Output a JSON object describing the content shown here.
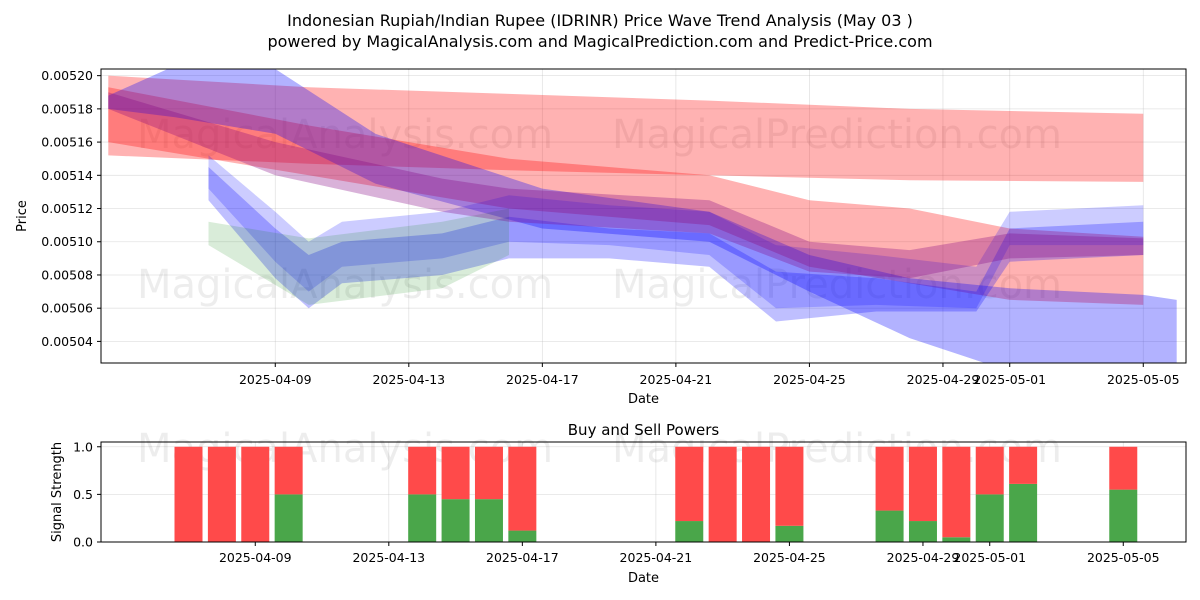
{
  "title_line1": "Indonesian Rupiah/Indian Rupee (IDRINR) Price Wave Trend Analysis (May 03 )",
  "title_line2": "powered by MagicalAnalysis.com and MagicalPrediction.com and Predict-Price.com",
  "watermarks": [
    "MagicalAnalysis.com",
    "MagicalPrediction.com"
  ],
  "colors": {
    "red": "#ff0000",
    "blue": "#0000ff",
    "green": "#008000",
    "purple": "#800080",
    "buy": "#4aa64a",
    "sell": "#ff4a4a"
  },
  "chart_data": [
    {
      "type": "area",
      "title": "",
      "xlabel": "Date",
      "ylabel": "Price",
      "x_range": [
        "2025-04-04",
        "2025-05-06"
      ],
      "ylim": [
        0.005027,
        0.005204
      ],
      "x_ticks": [
        "2025-04-09",
        "2025-04-13",
        "2025-04-17",
        "2025-04-21",
        "2025-04-25",
        "2025-04-29",
        "2025-05-01",
        "2025-05-05"
      ],
      "y_ticks": [
        "0.00504",
        "0.00506",
        "0.00508",
        "0.00510",
        "0.00512",
        "0.00514",
        "0.00516",
        "0.00518",
        "0.00520"
      ],
      "grid": true,
      "series": [
        {
          "color": "red",
          "opacity": 0.3,
          "x": [
            "2025-04-04",
            "2025-04-10",
            "2025-04-16",
            "2025-04-22",
            "2025-04-28",
            "2025-05-05"
          ],
          "upper": [
            0.0052,
            0.005193,
            0.005189,
            0.005185,
            0.00518,
            0.005177
          ],
          "lower": [
            0.005152,
            0.005147,
            0.005143,
            0.00514,
            0.005137,
            0.005136
          ]
        },
        {
          "color": "red",
          "opacity": 0.3,
          "x": [
            "2025-04-04",
            "2025-04-10",
            "2025-04-16",
            "2025-04-22",
            "2025-04-25",
            "2025-04-28",
            "2025-05-01",
            "2025-05-05"
          ],
          "upper": [
            0.005193,
            0.00517,
            0.00515,
            0.00514,
            0.005125,
            0.00512,
            0.005108,
            0.005103
          ],
          "lower": [
            0.00516,
            0.00514,
            0.00512,
            0.00511,
            0.005085,
            0.005075,
            0.005065,
            0.005062
          ]
        },
        {
          "color": "blue",
          "opacity": 0.3,
          "x": [
            "2025-04-04",
            "2025-04-06",
            "2025-04-09",
            "2025-04-12",
            "2025-04-17",
            "2025-04-22",
            "2025-04-25",
            "2025-04-28",
            "2025-05-01",
            "2025-05-05",
            "2025-05-06"
          ],
          "upper": [
            0.005188,
            0.005206,
            0.005204,
            0.005165,
            0.005132,
            0.005118,
            0.005092,
            0.005078,
            0.005072,
            0.005068,
            0.005065
          ],
          "lower": [
            0.00518,
            0.005175,
            0.005165,
            0.005135,
            0.005108,
            0.0051,
            0.00507,
            0.005042,
            0.005022,
            0.00502,
            0.005015
          ]
        },
        {
          "color": "blue",
          "opacity": 0.2,
          "x": [
            "2025-04-07",
            "2025-04-09",
            "2025-04-10",
            "2025-04-11",
            "2025-04-14",
            "2025-04-16",
            "2025-04-19",
            "2025-04-22",
            "2025-04-24",
            "2025-04-27",
            "2025-04-30",
            "2025-05-01",
            "2025-05-05"
          ],
          "upper": [
            0.005152,
            0.005118,
            0.0051,
            0.005112,
            0.005118,
            0.005128,
            0.005122,
            0.005118,
            0.005098,
            0.005092,
            0.005085,
            0.005118,
            0.005122
          ],
          "lower": [
            0.005132,
            0.005088,
            0.00507,
            0.005085,
            0.00509,
            0.0051,
            0.005098,
            0.005092,
            0.00506,
            0.005062,
            0.00506,
            0.005098,
            0.005098
          ]
        },
        {
          "color": "blue",
          "opacity": 0.25,
          "x": [
            "2025-04-07",
            "2025-04-09",
            "2025-04-10",
            "2025-04-11",
            "2025-04-14",
            "2025-04-16",
            "2025-04-19",
            "2025-04-22",
            "2025-04-24",
            "2025-04-27",
            "2025-04-30",
            "2025-05-01",
            "2025-05-05"
          ],
          "upper": [
            0.005145,
            0.005108,
            0.005092,
            0.0051,
            0.005105,
            0.005115,
            0.005108,
            0.005105,
            0.005082,
            0.005078,
            0.00507,
            0.005108,
            0.005112
          ],
          "lower": [
            0.005125,
            0.005078,
            0.00506,
            0.005075,
            0.00508,
            0.00509,
            0.00509,
            0.005085,
            0.005052,
            0.005058,
            0.005058,
            0.005088,
            0.005092
          ]
        },
        {
          "color": "green",
          "opacity": 0.15,
          "x": [
            "2025-04-07",
            "2025-04-10",
            "2025-04-14",
            "2025-04-16"
          ],
          "upper": [
            0.005112,
            0.005102,
            0.005112,
            0.00512
          ],
          "lower": [
            0.005098,
            0.005062,
            0.005072,
            0.005092
          ]
        },
        {
          "color": "purple",
          "opacity": 0.3,
          "x": [
            "2025-04-04",
            "2025-04-09",
            "2025-04-14",
            "2025-04-16",
            "2025-04-22",
            "2025-04-25",
            "2025-04-28",
            "2025-05-01",
            "2025-05-05"
          ],
          "upper": [
            0.00519,
            0.00516,
            0.005138,
            0.005132,
            0.005125,
            0.0051,
            0.005095,
            0.005105,
            0.005102
          ],
          "lower": [
            0.00518,
            0.00514,
            0.005118,
            0.005112,
            0.005105,
            0.005082,
            0.005078,
            0.00509,
            0.005092
          ]
        }
      ]
    },
    {
      "type": "bar",
      "title": "Buy and Sell Powers",
      "xlabel": "Date",
      "ylabel": "Signal Strength",
      "ylim": [
        0,
        1.05
      ],
      "y_ticks": [
        "0.0",
        "0.5",
        "1.0"
      ],
      "x_ticks": [
        "2025-04-09",
        "2025-04-13",
        "2025-04-17",
        "2025-04-21",
        "2025-04-25",
        "2025-04-29",
        "2025-05-01",
        "2025-05-05"
      ],
      "categories": [
        "2025-04-07",
        "2025-04-08",
        "2025-04-09",
        "2025-04-10",
        "2025-04-14",
        "2025-04-15",
        "2025-04-16",
        "2025-04-17",
        "2025-04-22",
        "2025-04-23",
        "2025-04-24",
        "2025-04-25",
        "2025-04-28",
        "2025-04-29",
        "2025-04-30",
        "2025-05-01",
        "2025-05-02",
        "2025-05-05"
      ],
      "series": [
        {
          "name": "buy",
          "values": [
            0,
            0,
            0,
            0.5,
            0.5,
            0.45,
            0.45,
            0.12,
            0.22,
            0,
            0,
            0.17,
            0.33,
            0.22,
            0.05,
            0.5,
            0.61,
            0.55
          ]
        },
        {
          "name": "sell",
          "values": [
            1,
            1,
            1,
            0.5,
            0.5,
            0.55,
            0.55,
            0.88,
            0.78,
            1,
            1,
            0.83,
            0.67,
            0.78,
            0.95,
            0.5,
            0.39,
            0.45
          ]
        }
      ]
    }
  ]
}
